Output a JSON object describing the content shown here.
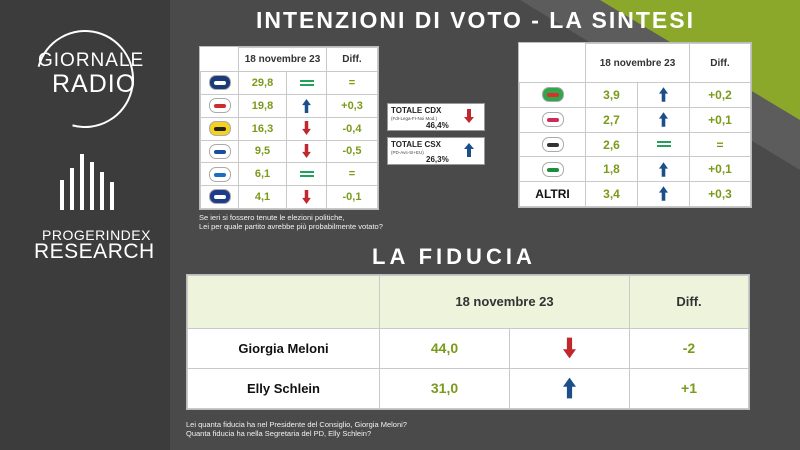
{
  "brand": {
    "radio_line1": "GIORNALE",
    "radio_line2": "RADIO",
    "research_line1": "PROGERINDEX",
    "research_line2": "RESEARCH"
  },
  "title": "INTENZIONI DI VOTO - LA SINTESI",
  "subtitle": "LA FIDUCIA",
  "colors": {
    "background": "#4a4a4a",
    "accent_green": "#8ba82a",
    "value_green": "#7a9a1a",
    "arrow_blue": "#1c4f8a",
    "arrow_red": "#c0282d",
    "equal_green": "#22a15a"
  },
  "left_table": {
    "header_date": "18 novembre 23",
    "header_diff": "Diff.",
    "rows": [
      {
        "logo": "fratelli-italia-logo",
        "value": "29,8",
        "trend": "equal",
        "diff": "="
      },
      {
        "logo": "pd-logo",
        "value": "19,8",
        "trend": "up",
        "diff": "+0,3"
      },
      {
        "logo": "movimento-5-stelle-logo",
        "value": "16,3",
        "trend": "down",
        "diff": "-0,4"
      },
      {
        "logo": "lega-salvini-logo",
        "value": "9,5",
        "trend": "down",
        "diff": "-0,5"
      },
      {
        "logo": "forza-italia-logo",
        "value": "6,1",
        "trend": "equal",
        "diff": "="
      },
      {
        "logo": "azione-logo",
        "value": "4,1",
        "trend": "down",
        "diff": "-0,1"
      }
    ]
  },
  "summary": {
    "cdx_title": "TOTALE CDX",
    "cdx_sub": "(FdI-Lega-FI-Noi Mod.)",
    "cdx_value": "46,4%",
    "cdx_trend": "down",
    "csx_title": "TOTALE CSX",
    "csx_sub": "(PD-Avs-SI+EU)",
    "csx_value": "26,3%",
    "csx_trend": "up"
  },
  "left_note": {
    "line1": "Se ieri si fossero tenute le elezioni politiche,",
    "line2": "Lei per quale partito avrebbe più probabilmente votato?"
  },
  "right_table": {
    "header_date": "18 novembre 23",
    "header_diff": "Diff.",
    "rows": [
      {
        "logo": "verdi-sinistra-logo",
        "label": "",
        "value": "3,9",
        "trend": "up",
        "diff": "+0,2"
      },
      {
        "logo": "italia-viva-logo",
        "label": "",
        "value": "2,7",
        "trend": "up",
        "diff": "+0,1"
      },
      {
        "logo": "piu-europa-logo",
        "label": "",
        "value": "2,6",
        "trend": "equal",
        "diff": "="
      },
      {
        "logo": "italexit-logo",
        "label": "",
        "value": "1,8",
        "trend": "up",
        "diff": "+0,1"
      },
      {
        "logo": "",
        "label": "ALTRI",
        "value": "3,4",
        "trend": "up",
        "diff": "+0,3"
      }
    ]
  },
  "fiducia": {
    "header_date": "18 novembre 23",
    "header_diff": "Diff.",
    "rows": [
      {
        "name": "Giorgia Meloni",
        "value": "44,0",
        "trend": "down",
        "diff": "-2"
      },
      {
        "name": "Elly Schlein",
        "value": "31,0",
        "trend": "up",
        "diff": "+1"
      }
    ]
  },
  "bottom_note": {
    "line1": "Lei quanta fiducia ha nel Presidente del Consiglio, Giorgia Meloni?",
    "line2": "Quanta fiducia ha nella Segretaria del PD, Elly Schlein?"
  }
}
